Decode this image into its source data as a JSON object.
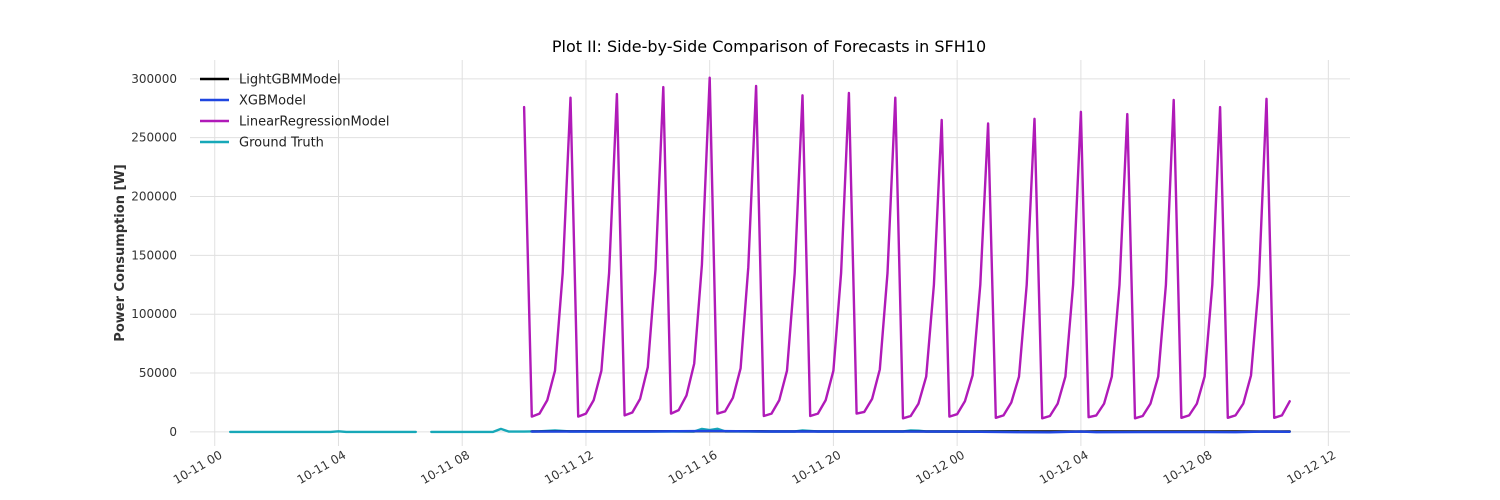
{
  "chart_data": {
    "type": "line",
    "title": "Plot II: Side-by-Side Comparison of Forecasts in SFH10",
    "xlabel": "",
    "ylabel": "Power Consumption [W]",
    "xlim": [
      "2023-10-10T23:12",
      "2023-10-12T12:42"
    ],
    "ylim": [
      -12000,
      316000
    ],
    "grid": true,
    "legend_position": "top-left",
    "x_ticks": [
      "10-11 00",
      "10-11 04",
      "10-11 08",
      "10-11 12",
      "10-11 16",
      "10-11 20",
      "10-12 00",
      "10-12 04",
      "10-12 08",
      "10-12 12"
    ],
    "x_tick_times": [
      "2023-10-11T00:00",
      "2023-10-11T04:00",
      "2023-10-11T08:00",
      "2023-10-11T12:00",
      "2023-10-11T16:00",
      "2023-10-11T20:00",
      "2023-10-12T00:00",
      "2023-10-12T04:00",
      "2023-10-12T08:00",
      "2023-10-12T12:00"
    ],
    "y_ticks": [
      0,
      50000,
      100000,
      150000,
      200000,
      250000,
      300000
    ],
    "series": [
      {
        "name": "LightGBMModel",
        "color": "#000000",
        "points": [
          [
            "2023-10-11T10:15",
            400
          ],
          [
            "2023-10-11T12:00",
            500
          ],
          [
            "2023-10-11T14:00",
            500
          ],
          [
            "2023-10-11T16:00",
            600
          ],
          [
            "2023-10-11T18:00",
            400
          ],
          [
            "2023-10-11T20:00",
            400
          ],
          [
            "2023-10-11T22:00",
            400
          ],
          [
            "2023-10-12T00:00",
            300
          ],
          [
            "2023-10-12T02:00",
            300
          ],
          [
            "2023-10-12T04:00",
            300
          ],
          [
            "2023-10-12T06:00",
            300
          ],
          [
            "2023-10-12T08:00",
            300
          ],
          [
            "2023-10-12T10:00",
            300
          ],
          [
            "2023-10-12T10:45",
            300
          ]
        ]
      },
      {
        "name": "XGBModel",
        "color": "#1f46e0",
        "points": [
          [
            "2023-10-11T10:15",
            200
          ],
          [
            "2023-10-11T12:00",
            300
          ],
          [
            "2023-10-11T14:00",
            300
          ],
          [
            "2023-10-11T16:00",
            800
          ],
          [
            "2023-10-11T18:00",
            300
          ],
          [
            "2023-10-11T20:00",
            300
          ],
          [
            "2023-10-11T22:00",
            200
          ],
          [
            "2023-10-12T00:00",
            200
          ],
          [
            "2023-10-12T02:00",
            -300
          ],
          [
            "2023-10-12T03:00",
            -400
          ],
          [
            "2023-10-12T04:00",
            200
          ],
          [
            "2023-10-12T04:30",
            -300
          ],
          [
            "2023-10-12T06:00",
            -200
          ],
          [
            "2023-10-12T08:00",
            -200
          ],
          [
            "2023-10-12T09:00",
            -300
          ],
          [
            "2023-10-12T10:00",
            200
          ],
          [
            "2023-10-12T10:45",
            100
          ]
        ]
      },
      {
        "name": "LinearRegressionModel",
        "color": "#b01ab8",
        "points": [
          [
            "2023-10-11T10:00",
            276000
          ],
          [
            "2023-10-11T10:15",
            13000
          ],
          [
            "2023-10-11T10:30",
            15500
          ],
          [
            "2023-10-11T10:45",
            27000
          ],
          [
            "2023-10-11T11:00",
            52000
          ],
          [
            "2023-10-11T11:15",
            135000
          ],
          [
            "2023-10-11T11:30",
            284000
          ],
          [
            "2023-10-11T11:45",
            13000
          ],
          [
            "2023-10-11T12:00",
            15500
          ],
          [
            "2023-10-11T12:15",
            27000
          ],
          [
            "2023-10-11T12:30",
            52000
          ],
          [
            "2023-10-11T12:45",
            135000
          ],
          [
            "2023-10-11T13:00",
            287000
          ],
          [
            "2023-10-11T13:15",
            14000
          ],
          [
            "2023-10-11T13:30",
            16500
          ],
          [
            "2023-10-11T13:45",
            28000
          ],
          [
            "2023-10-11T14:00",
            55000
          ],
          [
            "2023-10-11T14:15",
            138000
          ],
          [
            "2023-10-11T14:30",
            293000
          ],
          [
            "2023-10-11T14:45",
            15500
          ],
          [
            "2023-10-11T15:00",
            18500
          ],
          [
            "2023-10-11T15:15",
            31000
          ],
          [
            "2023-10-11T15:30",
            58000
          ],
          [
            "2023-10-11T15:45",
            142000
          ],
          [
            "2023-10-11T16:00",
            301000
          ],
          [
            "2023-10-11T16:15",
            15500
          ],
          [
            "2023-10-11T16:30",
            17500
          ],
          [
            "2023-10-11T16:45",
            29000
          ],
          [
            "2023-10-11T17:00",
            54000
          ],
          [
            "2023-10-11T17:15",
            140000
          ],
          [
            "2023-10-11T17:30",
            294000
          ],
          [
            "2023-10-11T17:45",
            13500
          ],
          [
            "2023-10-11T18:00",
            15500
          ],
          [
            "2023-10-11T18:15",
            27000
          ],
          [
            "2023-10-11T18:30",
            52000
          ],
          [
            "2023-10-11T18:45",
            135000
          ],
          [
            "2023-10-11T19:00",
            286000
          ],
          [
            "2023-10-11T19:15",
            13500
          ],
          [
            "2023-10-11T19:30",
            15500
          ],
          [
            "2023-10-11T19:45",
            27000
          ],
          [
            "2023-10-11T20:00",
            52000
          ],
          [
            "2023-10-11T20:15",
            135000
          ],
          [
            "2023-10-11T20:30",
            288000
          ],
          [
            "2023-10-11T20:45",
            15500
          ],
          [
            "2023-10-11T21:00",
            17000
          ],
          [
            "2023-10-11T21:15",
            28000
          ],
          [
            "2023-10-11T21:30",
            53000
          ],
          [
            "2023-10-11T21:45",
            135000
          ],
          [
            "2023-10-11T22:00",
            284000
          ],
          [
            "2023-10-11T22:15",
            11500
          ],
          [
            "2023-10-11T22:30",
            13500
          ],
          [
            "2023-10-11T22:45",
            24000
          ],
          [
            "2023-10-11T23:00",
            47000
          ],
          [
            "2023-10-11T23:15",
            125000
          ],
          [
            "2023-10-11T23:30",
            265000
          ],
          [
            "2023-10-11T23:45",
            13000
          ],
          [
            "2023-10-12T00:00",
            15000
          ],
          [
            "2023-10-12T00:15",
            26000
          ],
          [
            "2023-10-12T00:30",
            48000
          ],
          [
            "2023-10-12T00:45",
            125000
          ],
          [
            "2023-10-12T01:00",
            262000
          ],
          [
            "2023-10-12T01:15",
            12000
          ],
          [
            "2023-10-12T01:30",
            14000
          ],
          [
            "2023-10-12T01:45",
            25000
          ],
          [
            "2023-10-12T02:00",
            47000
          ],
          [
            "2023-10-12T02:15",
            125000
          ],
          [
            "2023-10-12T02:30",
            266000
          ],
          [
            "2023-10-12T02:45",
            11500
          ],
          [
            "2023-10-12T03:00",
            13500
          ],
          [
            "2023-10-12T03:15",
            24000
          ],
          [
            "2023-10-12T03:30",
            47000
          ],
          [
            "2023-10-12T03:45",
            125000
          ],
          [
            "2023-10-12T04:00",
            272000
          ],
          [
            "2023-10-12T04:15",
            12500
          ],
          [
            "2023-10-12T04:30",
            14000
          ],
          [
            "2023-10-12T04:45",
            24000
          ],
          [
            "2023-10-12T05:00",
            47000
          ],
          [
            "2023-10-12T05:15",
            125000
          ],
          [
            "2023-10-12T05:30",
            270000
          ],
          [
            "2023-10-12T05:45",
            11500
          ],
          [
            "2023-10-12T06:00",
            13500
          ],
          [
            "2023-10-12T06:15",
            24000
          ],
          [
            "2023-10-12T06:30",
            47000
          ],
          [
            "2023-10-12T06:45",
            125000
          ],
          [
            "2023-10-12T07:00",
            282000
          ],
          [
            "2023-10-12T07:15",
            12000
          ],
          [
            "2023-10-12T07:30",
            14000
          ],
          [
            "2023-10-12T07:45",
            24000
          ],
          [
            "2023-10-12T08:00",
            47000
          ],
          [
            "2023-10-12T08:15",
            125000
          ],
          [
            "2023-10-12T08:30",
            276000
          ],
          [
            "2023-10-12T08:45",
            12000
          ],
          [
            "2023-10-12T09:00",
            14000
          ],
          [
            "2023-10-12T09:15",
            24000
          ],
          [
            "2023-10-12T09:30",
            48000
          ],
          [
            "2023-10-12T09:45",
            125000
          ],
          [
            "2023-10-12T10:00",
            283000
          ],
          [
            "2023-10-12T10:15",
            12000
          ],
          [
            "2023-10-12T10:30",
            14000
          ],
          [
            "2023-10-12T10:45",
            26000
          ]
        ]
      },
      {
        "name": "Ground Truth",
        "color": "#17a8b8",
        "segments": [
          [
            [
              "2023-10-11T00:30",
              0
            ],
            [
              "2023-10-11T01:30",
              0
            ],
            [
              "2023-10-11T02:30",
              0
            ],
            [
              "2023-10-11T03:45",
              0
            ],
            [
              "2023-10-11T04:00",
              500
            ],
            [
              "2023-10-11T04:15",
              0
            ],
            [
              "2023-10-11T05:00",
              0
            ],
            [
              "2023-10-11T06:00",
              0
            ],
            [
              "2023-10-11T06:30",
              0
            ]
          ],
          [
            [
              "2023-10-11T07:00",
              0
            ],
            [
              "2023-10-11T08:00",
              0
            ],
            [
              "2023-10-11T08:30",
              0
            ],
            [
              "2023-10-11T09:00",
              0
            ],
            [
              "2023-10-11T09:15",
              2500
            ],
            [
              "2023-10-11T09:30",
              300
            ],
            [
              "2023-10-11T10:00",
              200
            ],
            [
              "2023-10-11T10:30",
              500
            ],
            [
              "2023-10-11T11:00",
              1200
            ],
            [
              "2023-10-11T11:30",
              300
            ],
            [
              "2023-10-11T12:30",
              300
            ],
            [
              "2023-10-11T13:30",
              300
            ],
            [
              "2023-10-11T14:30",
              300
            ],
            [
              "2023-10-11T15:30",
              300
            ],
            [
              "2023-10-11T15:45",
              2500
            ],
            [
              "2023-10-11T16:00",
              1500
            ],
            [
              "2023-10-11T16:15",
              2600
            ],
            [
              "2023-10-11T16:30",
              400
            ],
            [
              "2023-10-11T17:30",
              300
            ],
            [
              "2023-10-11T18:45",
              300
            ],
            [
              "2023-10-11T19:00",
              1200
            ],
            [
              "2023-10-11T19:30",
              300
            ],
            [
              "2023-10-11T20:30",
              300
            ],
            [
              "2023-10-11T21:30",
              300
            ],
            [
              "2023-10-11T22:15",
              300
            ],
            [
              "2023-10-11T22:30",
              1200
            ],
            [
              "2023-10-11T22:45",
              1000
            ],
            [
              "2023-10-11T23:00",
              300
            ],
            [
              "2023-10-12T00:00",
              300
            ],
            [
              "2023-10-12T01:00",
              300
            ],
            [
              "2023-10-12T01:45",
              300
            ],
            [
              "2023-10-12T02:00",
              300
            ]
          ]
        ]
      }
    ]
  }
}
